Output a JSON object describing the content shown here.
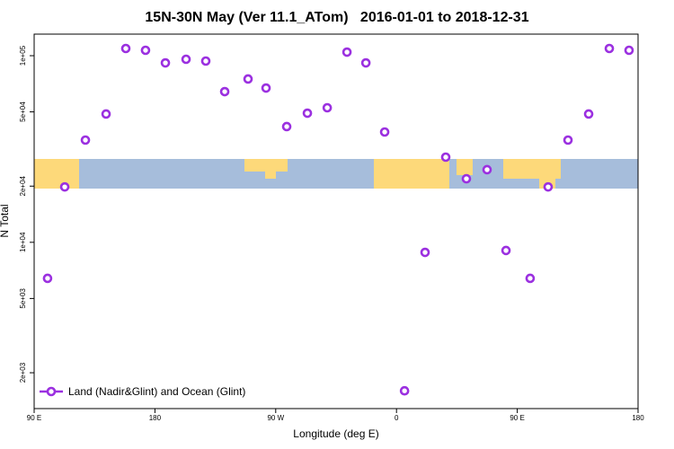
{
  "chart_data": {
    "type": "scatter",
    "title": "15N-30N May (Ver 11.1_ATom)   2016-01-01 to 2018-12-31",
    "xlabel": "Longitude (deg E)",
    "ylabel": "N Total",
    "log_y": true,
    "legend": "lower left",
    "xlim": [
      90,
      540
    ],
    "ylim": [
      1285,
      130500
    ],
    "xticks": [
      {
        "value": 90,
        "label": "90 E"
      },
      180,
      {
        "value": 270,
        "label": "90 W"
      },
      {
        "value": 360,
        "label": "0"
      },
      {
        "value": 450,
        "label": "90 E"
      },
      {
        "value": 540,
        "label": "180"
      }
    ],
    "yticks": [
      {
        "value": 2000,
        "label": "2e+03"
      },
      {
        "value": 5000,
        "label": "5e+03"
      },
      {
        "value": 10000,
        "label": "1e+04"
      },
      {
        "value": 20000,
        "label": "2e+04"
      },
      {
        "value": 50000,
        "label": "5e+04"
      },
      {
        "value": 100000,
        "label": "1e+05"
      }
    ],
    "series": [
      {
        "name": "Land (Nadir&Glint) and Ocean (Glint)",
        "color": "#9b30e0",
        "x": [
          100.0,
          112.8,
          128.2,
          143.6,
          158.3,
          173.0,
          187.8,
          203.2,
          217.9,
          232.0,
          249.4,
          262.8,
          278.2,
          293.6,
          308.4,
          323.1,
          337.2,
          351.2,
          366.0,
          381.3,
          396.7,
          412.1,
          427.5,
          441.6,
          459.6,
          473.0,
          487.8,
          503.2,
          518.6,
          533.3
        ],
        "values": [
          6410,
          19800,
          35300,
          48700,
          109300,
          106900,
          91500,
          95700,
          93600,
          64200,
          75000,
          67100,
          41700,
          49200,
          52600,
          104500,
          91500,
          39000,
          1600,
          8830,
          28600,
          21900,
          24500,
          9040,
          6410,
          19800,
          35300,
          48700,
          109300,
          106900
        ]
      }
    ]
  }
}
